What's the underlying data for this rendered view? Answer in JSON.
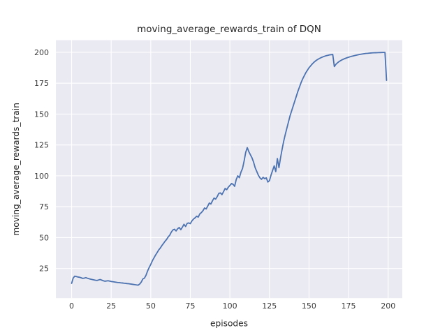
{
  "figure": {
    "title": "moving_average_rewards_train of DQN",
    "background": "#ffffff"
  },
  "chart_data": {
    "type": "line",
    "title": "moving_average_rewards_train of DQN",
    "xlabel": "episodes",
    "ylabel": "moving_average_rewards_train",
    "x_start": 0,
    "x_step": 1,
    "xlim": [
      -9.95,
      208.95
    ],
    "ylim": [
      1.0,
      209.8
    ],
    "xticks": [
      0,
      25,
      50,
      75,
      100,
      125,
      150,
      175,
      200
    ],
    "yticks": [
      25,
      50,
      75,
      100,
      125,
      150,
      175,
      200
    ],
    "grid": true,
    "legend": false,
    "style": {
      "plot_bg": "#eaeaf2",
      "grid_color": "#ffffff",
      "line_color": "#4c72b0",
      "line_width": 1.8,
      "grid_width": 1.1,
      "text_color": "#262626",
      "tick_color": "#3a3a3a"
    },
    "series": [
      {
        "name": "moving_average_rewards_train",
        "values": [
          13.0,
          17.3,
          18.8,
          18.5,
          18.1,
          17.9,
          17.5,
          17.0,
          17.2,
          17.6,
          17.1,
          16.7,
          16.4,
          16.1,
          15.8,
          15.5,
          15.3,
          15.7,
          16.1,
          15.6,
          15.1,
          14.7,
          14.9,
          15.1,
          14.8,
          14.5,
          14.3,
          14.1,
          13.9,
          13.7,
          13.6,
          13.4,
          13.3,
          13.1,
          13.0,
          12.8,
          12.7,
          12.5,
          12.3,
          12.1,
          11.9,
          11.7,
          11.5,
          12.4,
          14.0,
          16.5,
          17.2,
          19.5,
          23.0,
          25.8,
          28.3,
          31.2,
          33.5,
          35.8,
          37.8,
          40.0,
          41.5,
          43.5,
          45.2,
          47.0,
          48.5,
          50.5,
          52.0,
          54.5,
          56.2,
          56.8,
          55.4,
          57.2,
          58.2,
          56.4,
          58.5,
          60.8,
          59.0,
          61.5,
          61.9,
          61.3,
          63.5,
          65.0,
          66.0,
          67.3,
          66.6,
          69.2,
          70.3,
          71.8,
          74.0,
          73.2,
          75.5,
          78.0,
          77.2,
          79.8,
          82.0,
          81.2,
          83.2,
          85.8,
          86.2,
          84.8,
          87.2,
          89.8,
          88.8,
          90.8,
          92.2,
          93.8,
          93.2,
          91.5,
          97.0,
          100.0,
          98.5,
          103.0,
          106.0,
          112.0,
          119.0,
          122.8,
          119.5,
          117.0,
          114.5,
          111.0,
          106.5,
          103.5,
          100.5,
          98.4,
          97.2,
          98.8,
          97.7,
          98.4,
          95.0,
          96.1,
          100.6,
          104.4,
          108.1,
          103.4,
          114.0,
          106.6,
          114.5,
          121.5,
          128.0,
          133.5,
          138.5,
          143.5,
          148.5,
          152.5,
          156.5,
          160.5,
          164.5,
          168.5,
          172.0,
          175.5,
          178.5,
          181.0,
          183.5,
          185.5,
          187.5,
          189.0,
          190.5,
          191.8,
          192.9,
          193.8,
          194.6,
          195.3,
          195.9,
          196.4,
          196.9,
          197.3,
          197.6,
          197.9,
          198.1,
          198.3,
          188.5,
          190.3,
          191.5,
          192.5,
          193.3,
          194.0,
          194.6,
          195.1,
          195.6,
          196.0,
          196.4,
          196.8,
          197.1,
          197.4,
          197.7,
          198.0,
          198.3,
          198.5,
          198.7,
          198.9,
          199.1,
          199.2,
          199.35,
          199.45,
          199.55,
          199.6,
          199.65,
          199.7,
          199.75,
          199.8,
          199.85,
          199.9,
          199.9,
          177.3
        ]
      }
    ]
  }
}
